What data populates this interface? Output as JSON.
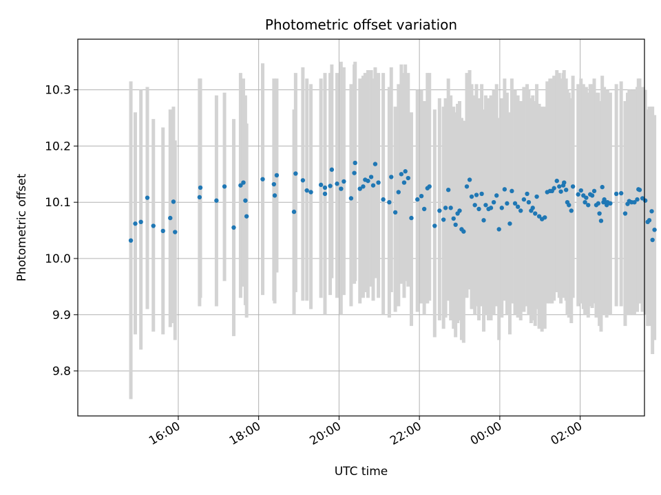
{
  "chart_data": {
    "type": "scatter",
    "title": "Photometric offset variation",
    "xlabel": "UTC time",
    "ylabel": "Photometric offset",
    "x_unit": "hours since 00:00 of first day (values > 24 fall after midnight)",
    "xlim": [
      13.5,
      27.6
    ],
    "ylim": [
      9.72,
      10.39
    ],
    "grid": true,
    "colors": {
      "points": "#1f77b4",
      "errorbars": "#d3d3d3"
    },
    "x_ticks": [
      {
        "value": 16,
        "label": "16:00"
      },
      {
        "value": 18,
        "label": "18:00"
      },
      {
        "value": 20,
        "label": "20:00"
      },
      {
        "value": 22,
        "label": "22:00"
      },
      {
        "value": 24,
        "label": "00:00"
      },
      {
        "value": 26,
        "label": "02:00"
      }
    ],
    "y_ticks": [
      {
        "value": 9.8,
        "label": "9.8"
      },
      {
        "value": 9.9,
        "label": "9.9"
      },
      {
        "value": 10.0,
        "label": "10.0"
      },
      {
        "value": 10.1,
        "label": "10.1"
      },
      {
        "value": 10.2,
        "label": "10.2"
      },
      {
        "value": 10.3,
        "label": "10.3"
      }
    ],
    "points": [
      [
        14.82,
        10.032,
        9.75,
        10.315
      ],
      [
        14.93,
        10.062,
        9.865,
        10.26
      ],
      [
        15.07,
        10.065,
        9.838,
        10.3
      ],
      [
        15.23,
        10.108,
        9.91,
        10.305
      ],
      [
        15.38,
        10.058,
        9.87,
        10.248
      ],
      [
        15.62,
        10.049,
        9.865,
        10.233
      ],
      [
        15.8,
        10.072,
        9.878,
        10.265
      ],
      [
        15.88,
        10.101,
        9.885,
        10.27
      ],
      [
        15.92,
        10.047,
        9.855,
        10.21
      ],
      [
        16.53,
        10.109,
        9.915,
        10.32
      ],
      [
        16.55,
        10.126,
        9.93,
        10.32
      ],
      [
        16.95,
        10.103,
        9.915,
        10.29
      ],
      [
        17.15,
        10.128,
        9.96,
        10.295
      ],
      [
        17.38,
        10.055,
        9.862,
        10.248
      ],
      [
        17.55,
        10.13,
        9.93,
        10.33
      ],
      [
        17.62,
        10.135,
        9.95,
        10.32
      ],
      [
        17.67,
        10.103,
        9.917,
        10.29
      ],
      [
        17.7,
        10.075,
        9.895,
        10.24
      ],
      [
        18.1,
        10.141,
        9.935,
        10.347
      ],
      [
        18.38,
        10.132,
        9.925,
        10.32
      ],
      [
        18.4,
        10.112,
        9.92,
        10.3
      ],
      [
        18.45,
        10.148,
        9.975,
        10.32
      ],
      [
        18.88,
        10.083,
        9.9,
        10.265
      ],
      [
        18.92,
        10.151,
        9.94,
        10.33
      ],
      [
        19.1,
        10.139,
        9.925,
        10.34
      ],
      [
        19.2,
        10.121,
        9.925,
        10.32
      ],
      [
        19.3,
        10.118,
        9.91,
        10.31
      ],
      [
        19.55,
        10.131,
        9.93,
        10.32
      ],
      [
        19.65,
        10.126,
        9.93,
        10.33
      ],
      [
        19.65,
        10.115,
        9.9,
        10.32
      ],
      [
        19.82,
        10.158,
        9.965,
        10.345
      ],
      [
        19.78,
        10.129,
        9.935,
        10.33
      ],
      [
        19.95,
        10.133,
        9.93,
        10.33
      ],
      [
        20.05,
        10.124,
        9.9,
        10.35
      ],
      [
        20.12,
        10.137,
        9.935,
        10.34
      ],
      [
        20.3,
        10.107,
        9.915,
        10.31
      ],
      [
        20.38,
        10.152,
        9.955,
        10.345
      ],
      [
        20.4,
        10.17,
        9.96,
        10.35
      ],
      [
        20.52,
        10.124,
        9.92,
        10.32
      ],
      [
        20.6,
        10.128,
        9.93,
        10.325
      ],
      [
        20.65,
        10.14,
        9.94,
        10.33
      ],
      [
        20.72,
        10.138,
        9.93,
        10.335
      ],
      [
        20.8,
        10.145,
        9.95,
        10.335
      ],
      [
        20.85,
        10.13,
        9.925,
        10.32
      ],
      [
        20.9,
        10.168,
        9.965,
        10.34
      ],
      [
        20.98,
        10.135,
        9.93,
        10.33
      ],
      [
        21.1,
        10.105,
        9.9,
        10.33
      ],
      [
        21.25,
        10.1,
        9.895,
        10.305
      ],
      [
        21.3,
        10.145,
        9.94,
        10.34
      ],
      [
        21.4,
        10.082,
        9.905,
        10.27
      ],
      [
        21.48,
        10.118,
        9.915,
        10.31
      ],
      [
        21.55,
        10.15,
        9.955,
        10.345
      ],
      [
        21.62,
        10.135,
        9.93,
        10.33
      ],
      [
        21.65,
        10.155,
        9.96,
        10.345
      ],
      [
        21.72,
        10.143,
        9.95,
        10.33
      ],
      [
        21.8,
        10.072,
        9.88,
        10.26
      ],
      [
        21.95,
        10.105,
        9.905,
        10.3
      ],
      [
        22.05,
        10.111,
        9.92,
        10.3
      ],
      [
        22.12,
        10.088,
        9.9,
        10.28
      ],
      [
        22.2,
        10.125,
        9.92,
        10.33
      ],
      [
        22.25,
        10.128,
        9.925,
        10.33
      ],
      [
        22.38,
        10.058,
        9.86,
        10.265
      ],
      [
        22.5,
        10.085,
        9.89,
        10.285
      ],
      [
        22.6,
        10.069,
        9.875,
        10.27
      ],
      [
        22.65,
        10.09,
        9.895,
        10.285
      ],
      [
        22.72,
        10.122,
        9.925,
        10.32
      ],
      [
        22.78,
        10.09,
        9.89,
        10.29
      ],
      [
        22.85,
        10.071,
        9.875,
        10.27
      ],
      [
        22.9,
        10.06,
        9.86,
        10.26
      ],
      [
        22.95,
        10.08,
        9.885,
        10.275
      ],
      [
        23.0,
        10.085,
        9.89,
        10.28
      ],
      [
        23.05,
        10.052,
        9.855,
        10.25
      ],
      [
        23.1,
        10.048,
        9.85,
        10.245
      ],
      [
        23.18,
        10.128,
        9.93,
        10.33
      ],
      [
        23.25,
        10.14,
        9.945,
        10.335
      ],
      [
        23.3,
        10.11,
        9.91,
        10.31
      ],
      [
        23.38,
        10.095,
        9.9,
        10.29
      ],
      [
        23.42,
        10.113,
        9.915,
        10.31
      ],
      [
        23.48,
        10.088,
        9.89,
        10.285
      ],
      [
        23.55,
        10.115,
        9.915,
        10.31
      ],
      [
        23.6,
        10.068,
        9.87,
        10.265
      ],
      [
        23.65,
        10.095,
        9.9,
        10.29
      ],
      [
        23.72,
        10.088,
        9.89,
        10.285
      ],
      [
        23.78,
        10.09,
        9.89,
        10.29
      ],
      [
        23.85,
        10.1,
        9.9,
        10.3
      ],
      [
        23.92,
        10.112,
        9.915,
        10.31
      ],
      [
        23.98,
        10.052,
        9.855,
        10.25
      ],
      [
        24.05,
        10.09,
        9.895,
        10.285
      ],
      [
        24.12,
        10.123,
        9.925,
        10.32
      ],
      [
        24.18,
        10.098,
        9.9,
        10.295
      ],
      [
        24.25,
        10.062,
        9.865,
        10.26
      ],
      [
        24.3,
        10.12,
        9.92,
        10.32
      ],
      [
        24.38,
        10.098,
        9.9,
        10.3
      ],
      [
        24.45,
        10.092,
        9.895,
        10.29
      ],
      [
        24.52,
        10.085,
        9.89,
        10.28
      ],
      [
        24.6,
        10.105,
        9.905,
        10.305
      ],
      [
        24.68,
        10.115,
        9.915,
        10.31
      ],
      [
        24.72,
        10.1,
        9.9,
        10.3
      ],
      [
        24.78,
        10.085,
        9.885,
        10.285
      ],
      [
        24.82,
        10.09,
        9.89,
        10.29
      ],
      [
        24.88,
        10.08,
        9.88,
        10.28
      ],
      [
        24.92,
        10.11,
        9.91,
        10.31
      ],
      [
        24.98,
        10.075,
        9.875,
        10.275
      ],
      [
        25.05,
        10.07,
        9.87,
        10.27
      ],
      [
        25.12,
        10.073,
        9.875,
        10.27
      ],
      [
        25.18,
        10.118,
        9.92,
        10.315
      ],
      [
        25.25,
        10.12,
        9.92,
        10.32
      ],
      [
        25.3,
        10.12,
        9.92,
        10.32
      ],
      [
        25.35,
        10.125,
        9.925,
        10.325
      ],
      [
        25.42,
        10.138,
        9.94,
        10.335
      ],
      [
        25.48,
        10.128,
        9.93,
        10.33
      ],
      [
        25.52,
        10.119,
        9.92,
        10.32
      ],
      [
        25.58,
        10.13,
        9.93,
        10.33
      ],
      [
        25.6,
        10.135,
        9.935,
        10.335
      ],
      [
        25.65,
        10.122,
        9.925,
        10.32
      ],
      [
        25.68,
        10.1,
        9.9,
        10.3
      ],
      [
        25.72,
        10.095,
        9.895,
        10.295
      ],
      [
        25.78,
        10.085,
        9.885,
        10.285
      ],
      [
        25.82,
        10.128,
        9.93,
        10.325
      ],
      [
        25.95,
        10.114,
        9.915,
        10.31
      ],
      [
        26.02,
        10.121,
        9.92,
        10.32
      ],
      [
        26.08,
        10.112,
        9.91,
        10.31
      ],
      [
        26.12,
        10.1,
        9.9,
        10.3
      ],
      [
        26.15,
        10.108,
        9.91,
        10.305
      ],
      [
        26.2,
        10.095,
        9.895,
        10.295
      ],
      [
        26.25,
        10.114,
        9.915,
        10.31
      ],
      [
        26.3,
        10.112,
        9.912,
        10.31
      ],
      [
        26.35,
        10.12,
        9.92,
        10.32
      ],
      [
        26.4,
        10.095,
        9.895,
        10.295
      ],
      [
        26.45,
        10.098,
        9.9,
        10.295
      ],
      [
        26.48,
        10.08,
        9.88,
        10.28
      ],
      [
        26.52,
        10.067,
        9.87,
        10.265
      ],
      [
        26.55,
        10.127,
        9.925,
        10.325
      ],
      [
        26.58,
        10.1,
        9.9,
        10.3
      ],
      [
        26.6,
        10.105,
        9.905,
        10.305
      ],
      [
        26.63,
        10.1,
        9.9,
        10.3
      ],
      [
        26.66,
        10.095,
        9.895,
        10.295
      ],
      [
        26.68,
        10.1,
        9.9,
        10.3
      ],
      [
        26.75,
        10.098,
        9.9,
        10.295
      ],
      [
        26.9,
        10.115,
        9.915,
        10.31
      ],
      [
        27.02,
        10.116,
        9.915,
        10.315
      ],
      [
        27.12,
        10.08,
        9.88,
        10.28
      ],
      [
        27.18,
        10.097,
        9.9,
        10.295
      ],
      [
        27.22,
        10.102,
        9.9,
        10.3
      ],
      [
        27.28,
        10.1,
        9.9,
        10.3
      ],
      [
        27.35,
        10.1,
        9.9,
        10.3
      ],
      [
        27.42,
        10.105,
        9.905,
        10.305
      ],
      [
        27.45,
        10.123,
        9.92,
        10.32
      ],
      [
        27.48,
        10.122,
        9.92,
        10.32
      ],
      [
        27.55,
        10.107,
        9.905,
        10.305
      ],
      [
        27.62,
        10.103,
        9.9,
        10.3
      ],
      [
        27.68,
        10.065,
        9.88,
        10.265
      ],
      [
        27.72,
        10.068,
        9.88,
        10.27
      ],
      [
        27.78,
        10.084,
        9.885,
        10.27
      ],
      [
        27.8,
        10.033,
        9.83,
        10.27
      ],
      [
        27.85,
        10.051,
        9.855,
        10.255
      ]
    ]
  }
}
